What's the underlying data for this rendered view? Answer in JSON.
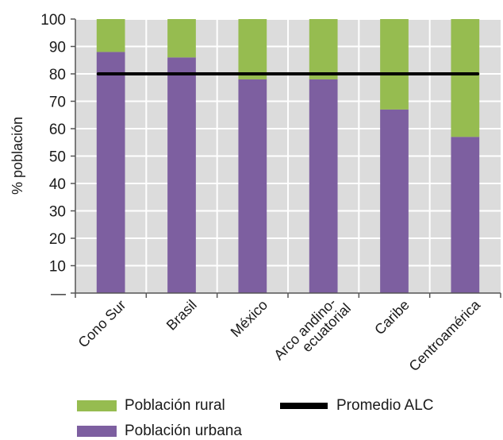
{
  "chart_data": {
    "type": "bar",
    "stacked": true,
    "categories": [
      "Cono Sur",
      "Brasil",
      "México",
      "Arco andino-ecuatorial",
      "Caribe",
      "Centroamérica"
    ],
    "category_label_lines": [
      [
        "Cono Sur"
      ],
      [
        "Brasil"
      ],
      [
        "México"
      ],
      [
        "Arco andino-",
        "ecuatorial"
      ],
      [
        "Caribe"
      ],
      [
        "Centroamérica"
      ]
    ],
    "series": [
      {
        "name": "Población urbana",
        "color": "#7d5fa0",
        "values": [
          88,
          86,
          78,
          78,
          67,
          57
        ]
      },
      {
        "name": "Población rural",
        "color": "#96bc50",
        "values": [
          12,
          14,
          22,
          22,
          33,
          43
        ]
      }
    ],
    "reference_line": {
      "name": "Promedio ALC",
      "value": 80,
      "color": "#000000"
    },
    "ylabel": "% población",
    "ylim": [
      0,
      100
    ],
    "yticks": [
      0,
      10,
      20,
      30,
      40,
      50,
      60,
      70,
      80,
      90,
      100
    ],
    "ytick_labels": [
      "—",
      "10",
      "20",
      "30",
      "40",
      "50",
      "60",
      "70",
      "80",
      "90",
      "100"
    ],
    "grid": true,
    "plot_background": "#dcdcdc",
    "legend_position": "bottom"
  },
  "legend": {
    "rural": "Población rural",
    "urbana": "Población urbana",
    "promedio": "Promedio ALC"
  }
}
